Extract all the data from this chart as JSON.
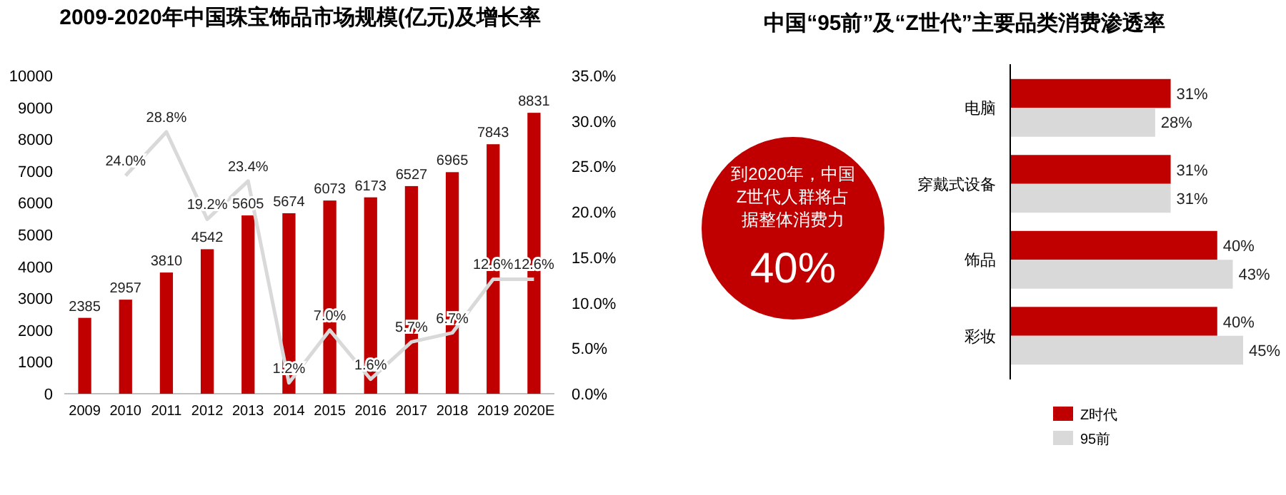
{
  "chart_data": [
    {
      "type": "bar",
      "title": "2009-2020年中国珠宝饰品市场规模(亿元)及增长率",
      "categories": [
        "2009",
        "2010",
        "2011",
        "2012",
        "2013",
        "2014",
        "2015",
        "2016",
        "2017",
        "2018",
        "2019",
        "2020E"
      ],
      "ylim": [
        0,
        10000
      ],
      "yticks": [
        0,
        1000,
        2000,
        3000,
        4000,
        5000,
        6000,
        7000,
        8000,
        9000,
        10000
      ],
      "y2lim": [
        0,
        35
      ],
      "y2ticks": [
        {
          "value": 0,
          "label": "0.0%"
        },
        {
          "value": 5,
          "label": "5.0%"
        },
        {
          "value": 10,
          "label": "10.0%"
        },
        {
          "value": 15,
          "label": "15.0%"
        },
        {
          "value": 20,
          "label": "20.0%"
        },
        {
          "value": 25,
          "label": "25.0%"
        },
        {
          "value": 30,
          "label": "30.0%"
        },
        {
          "value": 35,
          "label": "35.0%"
        }
      ],
      "marker": "none",
      "line_style": "solid",
      "series": [
        {
          "type": "bar",
          "color": "#c00000",
          "values": [
            2385,
            2957,
            3810,
            4542,
            5605,
            5674,
            6073,
            6173,
            6527,
            6965,
            7843,
            8831
          ],
          "value_labels": [
            "2385",
            "2957",
            "3810",
            "4542",
            "5605",
            "5674",
            "6073",
            "6173",
            "6527",
            "6965",
            "7843",
            "8831"
          ]
        },
        {
          "type": "line",
          "axis": "y2",
          "color": "#d9d9d9",
          "values": [
            null,
            24.0,
            28.8,
            19.2,
            23.4,
            1.2,
            7.0,
            1.6,
            5.7,
            6.7,
            12.6,
            12.6
          ],
          "value_labels": [
            null,
            "24.0%",
            "28.8%",
            "19.2%",
            "23.4%",
            "1.2%",
            "7.0%",
            "1.6%",
            "5.7%",
            "6.7%",
            "12.6%",
            "12.6%"
          ]
        }
      ]
    },
    {
      "type": "bar",
      "orientation": "horizontal",
      "title": "中国“95前”及“Z世代”主要品类消费渗透率",
      "categories": [
        "电脑",
        "穿戴式设备",
        "饰品",
        "彩妆"
      ],
      "legend": "bottom",
      "series": [
        {
          "name": "Z时代",
          "color": "#c00000",
          "values": [
            31,
            31,
            40,
            40
          ],
          "value_labels": [
            "31%",
            "31%",
            "40%",
            "40%"
          ]
        },
        {
          "name": "95前",
          "color": "#d9d9d9",
          "values": [
            28,
            31,
            43,
            45
          ],
          "value_labels": [
            "28%",
            "31%",
            "43%",
            "45%"
          ]
        }
      ],
      "annotations": [
        "到2020年，中国Z世代人群将占据整体消费力",
        "40%"
      ]
    }
  ]
}
